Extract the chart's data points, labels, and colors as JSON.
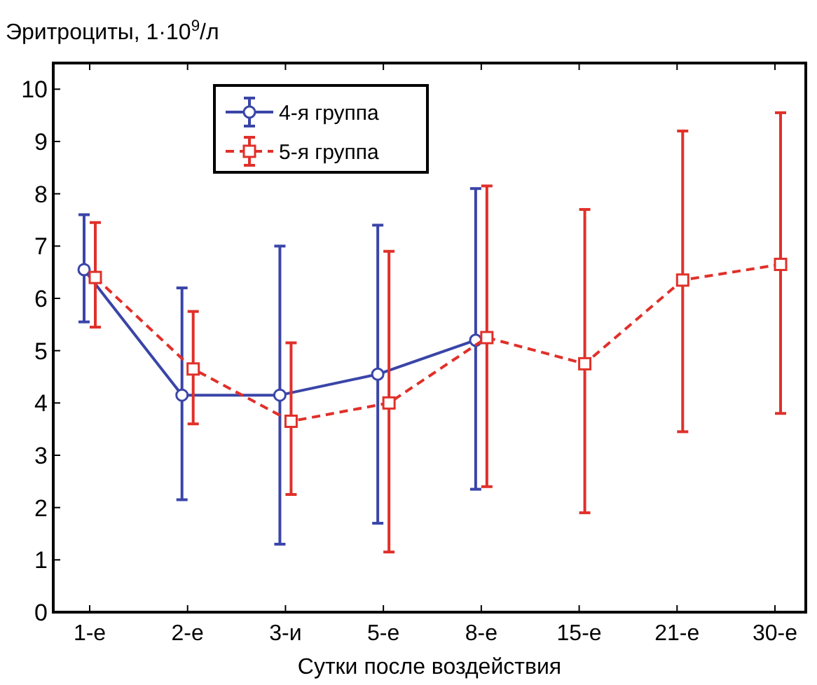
{
  "chart_data": {
    "type": "line",
    "ylabel": "Эритроциты, 1·10$^{9}$/л",
    "xlabel": "Сутки после воздействия",
    "categories": [
      "1-е",
      "2-е",
      "3-и",
      "5-е",
      "8-е",
      "15-е",
      "21-е",
      "30-е"
    ],
    "ylim": [
      0,
      10.5
    ],
    "yticks": [
      0,
      1,
      2,
      3,
      4,
      5,
      6,
      7,
      8,
      9,
      10
    ],
    "grid": false,
    "legend": "top left",
    "series": [
      {
        "name": "4-я группа",
        "color": "#3a45a8",
        "marker": "circle",
        "line_style": "solid",
        "values": [
          6.55,
          4.15,
          4.15,
          4.55,
          5.2,
          null,
          null,
          null
        ],
        "errors": [
          [
            5.55,
            7.6
          ],
          [
            2.15,
            6.2
          ],
          [
            1.3,
            7.0
          ],
          [
            1.7,
            7.4
          ],
          [
            2.35,
            8.1
          ],
          null,
          null,
          null
        ]
      },
      {
        "name": "5-я группа",
        "color": "#e0302a",
        "marker": "square",
        "line_style": "dashed",
        "values": [
          6.4,
          4.65,
          3.65,
          4.0,
          5.25,
          4.75,
          6.35,
          6.65
        ],
        "errors": [
          [
            5.45,
            7.45
          ],
          [
            3.6,
            5.75
          ],
          [
            2.25,
            5.15
          ],
          [
            1.15,
            6.9
          ],
          [
            2.4,
            8.15
          ],
          [
            1.9,
            7.7
          ],
          [
            3.45,
            9.2
          ],
          [
            3.8,
            9.55
          ]
        ]
      }
    ]
  }
}
